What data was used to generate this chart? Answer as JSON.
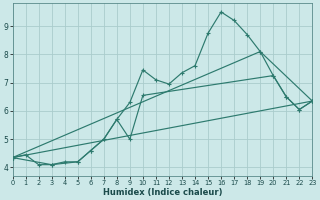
{
  "xlabel": "Humidex (Indice chaleur)",
  "bg_color": "#cce8e8",
  "grid_color": "#aacccc",
  "line_color": "#2d7a6e",
  "xlim": [
    0,
    23
  ],
  "ylim": [
    3.7,
    9.8
  ],
  "yticks": [
    4,
    5,
    6,
    7,
    8,
    9
  ],
  "xticks": [
    0,
    1,
    2,
    3,
    4,
    5,
    6,
    7,
    8,
    9,
    10,
    11,
    12,
    13,
    14,
    15,
    16,
    17,
    18,
    19,
    20,
    21,
    22,
    23
  ],
  "series1": [
    [
      0,
      4.35
    ],
    [
      1,
      4.45
    ],
    [
      2,
      4.1
    ],
    [
      3,
      4.1
    ],
    [
      4,
      4.2
    ],
    [
      5,
      4.2
    ],
    [
      6,
      4.6
    ],
    [
      7,
      5.0
    ],
    [
      8,
      5.7
    ],
    [
      9,
      6.3
    ],
    [
      10,
      7.45
    ],
    [
      11,
      7.1
    ],
    [
      12,
      6.95
    ],
    [
      13,
      7.35
    ],
    [
      14,
      7.6
    ],
    [
      15,
      8.75
    ],
    [
      16,
      9.5
    ],
    [
      17,
      9.2
    ],
    [
      18,
      8.7
    ],
    [
      19,
      8.1
    ],
    [
      20,
      7.25
    ],
    [
      21,
      6.5
    ],
    [
      22,
      6.05
    ],
    [
      23,
      6.35
    ]
  ],
  "series2": [
    [
      0,
      4.35
    ],
    [
      3,
      4.1
    ],
    [
      5,
      4.2
    ],
    [
      6,
      4.6
    ],
    [
      7,
      5.0
    ],
    [
      8,
      5.7
    ],
    [
      9,
      5.0
    ],
    [
      10,
      6.55
    ],
    [
      20,
      7.25
    ],
    [
      21,
      6.5
    ],
    [
      22,
      6.05
    ],
    [
      23,
      6.35
    ]
  ],
  "series3": [
    [
      0,
      4.35
    ],
    [
      23,
      6.35
    ]
  ],
  "series4": [
    [
      0,
      4.35
    ],
    [
      19,
      8.1
    ],
    [
      23,
      6.35
    ]
  ]
}
